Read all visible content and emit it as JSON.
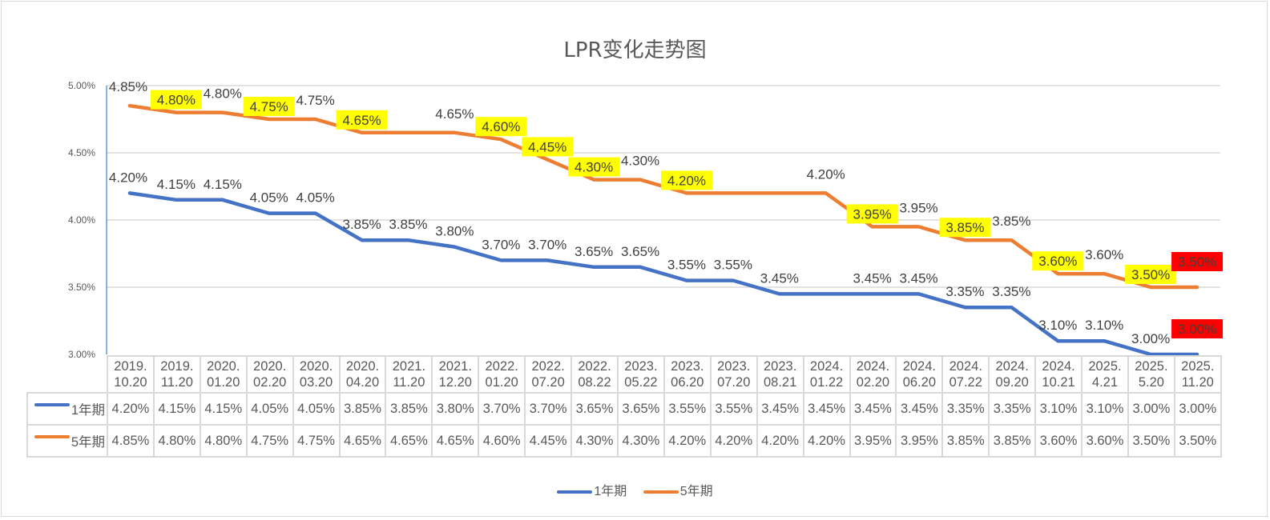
{
  "chart_data": {
    "type": "line",
    "title": "LPR变化走势图",
    "xlabel": "",
    "ylabel": "",
    "ylim": [
      3.0,
      5.0
    ],
    "yticks": [
      "5.00%",
      "4.50%",
      "4.00%",
      "3.50%",
      "3.00%"
    ],
    "ytick_values": [
      5.0,
      4.5,
      4.0,
      3.5,
      3.0
    ],
    "grid": true,
    "legend_position": "bottom",
    "categories": [
      [
        "2019.",
        "10.20"
      ],
      [
        "2019.",
        "11.20"
      ],
      [
        "2020.",
        "01.20"
      ],
      [
        "2020.",
        "02.20"
      ],
      [
        "2020.",
        "03.20"
      ],
      [
        "2020.",
        "04.20"
      ],
      [
        "2021.",
        "11.20"
      ],
      [
        "2021.",
        "12.20"
      ],
      [
        "2022.",
        "01.20"
      ],
      [
        "2022.",
        "07.20"
      ],
      [
        "2022.",
        "08.22"
      ],
      [
        "2023.",
        "05.22"
      ],
      [
        "2023.",
        "06.20"
      ],
      [
        "2023.",
        "07.20"
      ],
      [
        "2023.",
        "08.21"
      ],
      [
        "2024.",
        "01.22"
      ],
      [
        "2024.",
        "02.20"
      ],
      [
        "2024.",
        "06.20"
      ],
      [
        "2024.",
        "07.22"
      ],
      [
        "2024.",
        "09.20"
      ],
      [
        "2024.",
        "10.21"
      ],
      [
        "2025.",
        "4.21"
      ],
      [
        "2025.",
        "5.20"
      ],
      [
        "2025.",
        "11.20"
      ]
    ],
    "series": [
      {
        "name": "1年期",
        "color": "#4472c4",
        "values": [
          4.2,
          4.15,
          4.15,
          4.05,
          4.05,
          3.85,
          3.85,
          3.8,
          3.7,
          3.7,
          3.65,
          3.65,
          3.55,
          3.55,
          3.45,
          3.45,
          3.45,
          3.45,
          3.35,
          3.35,
          3.1,
          3.1,
          3.0,
          3.0
        ],
        "table_values": [
          "4.20%",
          "4.15%",
          "4.15%",
          "4.05%",
          "4.05%",
          "3.85%",
          "3.85%",
          "3.80%",
          "3.70%",
          "3.70%",
          "3.65%",
          "3.65%",
          "3.55%",
          "3.55%",
          "3.45%",
          "3.45%",
          "3.45%",
          "3.45%",
          "3.35%",
          "3.35%",
          "3.10%",
          "3.10%",
          "3.00%",
          "3.00%"
        ],
        "labels": [
          "4.20%",
          "4.15%",
          "4.15%",
          "4.05%",
          "4.05%",
          "3.85%",
          "3.85%",
          "3.80%",
          "3.70%",
          "3.70%",
          "3.65%",
          "3.65%",
          "3.55%",
          "3.55%",
          "3.45%",
          null,
          "3.45%",
          "3.45%",
          "3.35%",
          "3.35%",
          "3.10%",
          "3.10%",
          "3.00%",
          "3.00%"
        ],
        "label_highlight": [
          null,
          null,
          null,
          null,
          null,
          null,
          null,
          null,
          null,
          null,
          null,
          null,
          null,
          null,
          null,
          null,
          null,
          null,
          null,
          null,
          null,
          null,
          null,
          "red"
        ]
      },
      {
        "name": "5年期",
        "color": "#ed7d31",
        "values": [
          4.85,
          4.8,
          4.8,
          4.75,
          4.75,
          4.65,
          4.65,
          4.65,
          4.6,
          4.45,
          4.3,
          4.3,
          4.2,
          4.2,
          4.2,
          4.2,
          3.95,
          3.95,
          3.85,
          3.85,
          3.6,
          3.6,
          3.5,
          3.5
        ],
        "table_values": [
          "4.85%",
          "4.80%",
          "4.80%",
          "4.75%",
          "4.75%",
          "4.65%",
          "4.65%",
          "4.65%",
          "4.60%",
          "4.45%",
          "4.30%",
          "4.30%",
          "4.20%",
          "4.20%",
          "4.20%",
          "4.20%",
          "3.95%",
          "3.95%",
          "3.85%",
          "3.85%",
          "3.60%",
          "3.60%",
          "3.50%",
          "3.50%"
        ],
        "labels": [
          "4.85%",
          "4.80%",
          "4.80%",
          "4.75%",
          "4.75%",
          "4.65%",
          null,
          "4.65%",
          "4.60%",
          "4.45%",
          "4.30%",
          "4.30%",
          "4.20%",
          null,
          null,
          "4.20%",
          "3.95%",
          "3.95%",
          "3.85%",
          "3.85%",
          "3.60%",
          "3.60%",
          "3.50%",
          "3.50%"
        ],
        "label_highlight": [
          null,
          "yellow",
          null,
          "yellow",
          null,
          "yellow",
          null,
          null,
          "yellow",
          "yellow",
          "yellow",
          null,
          "yellow",
          null,
          null,
          null,
          "yellow",
          null,
          "yellow",
          null,
          "yellow",
          null,
          "yellow",
          "red"
        ]
      }
    ],
    "highlight_colors": {
      "yellow": "#ffff00",
      "red": "#ff0000"
    }
  }
}
